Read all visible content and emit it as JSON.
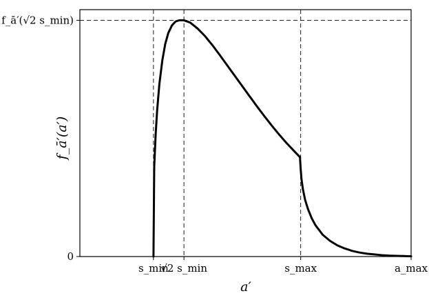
{
  "chart_data": {
    "type": "line",
    "title": "",
    "xlabel": "a′",
    "ylabel": "f_ā′(a′)",
    "x_ticks": [
      {
        "value": 1.0,
        "label": "s_min"
      },
      {
        "value": 1.414,
        "label": "√2 s_min"
      },
      {
        "value": 3.0,
        "label": "s_max"
      },
      {
        "value": 4.5,
        "label": "a_max"
      }
    ],
    "y_ticks": [
      {
        "value": 0,
        "label": "0"
      },
      {
        "value": 1.0,
        "label": "f_ā′(√2 s_min)"
      }
    ],
    "xlim": [
      0.0,
      4.5
    ],
    "ylim": [
      0,
      1.045
    ],
    "grid": false,
    "reference_lines": {
      "vertical": [
        1.0,
        1.414,
        3.0
      ],
      "horizontal": [
        1.0
      ]
    },
    "series": [
      {
        "x": [
          1.0,
          1.01,
          1.03,
          1.05,
          1.08,
          1.12,
          1.16,
          1.2,
          1.25,
          1.3,
          1.35,
          1.414,
          1.5,
          1.6,
          1.7,
          1.8,
          1.9,
          2.0,
          2.1,
          2.2,
          2.3,
          2.4,
          2.5,
          2.6,
          2.7,
          2.8,
          2.9,
          2.99,
          3.0,
          3.01,
          3.03,
          3.06,
          3.1,
          3.15,
          3.2,
          3.3,
          3.4,
          3.5,
          3.6,
          3.7,
          3.8,
          3.9,
          4.0,
          4.1,
          4.2,
          4.3,
          4.4,
          4.5
        ],
        "y": [
          0.0,
          0.38,
          0.52,
          0.62,
          0.73,
          0.83,
          0.9,
          0.945,
          0.978,
          0.995,
          1.0,
          1.0,
          0.99,
          0.965,
          0.933,
          0.895,
          0.853,
          0.81,
          0.767,
          0.724,
          0.681,
          0.638,
          0.597,
          0.557,
          0.519,
          0.483,
          0.45,
          0.421,
          0.37,
          0.33,
          0.285,
          0.24,
          0.2,
          0.162,
          0.133,
          0.092,
          0.066,
          0.047,
          0.034,
          0.024,
          0.017,
          0.012,
          0.009,
          0.006,
          0.004,
          0.003,
          0.002,
          0.001
        ]
      }
    ]
  }
}
